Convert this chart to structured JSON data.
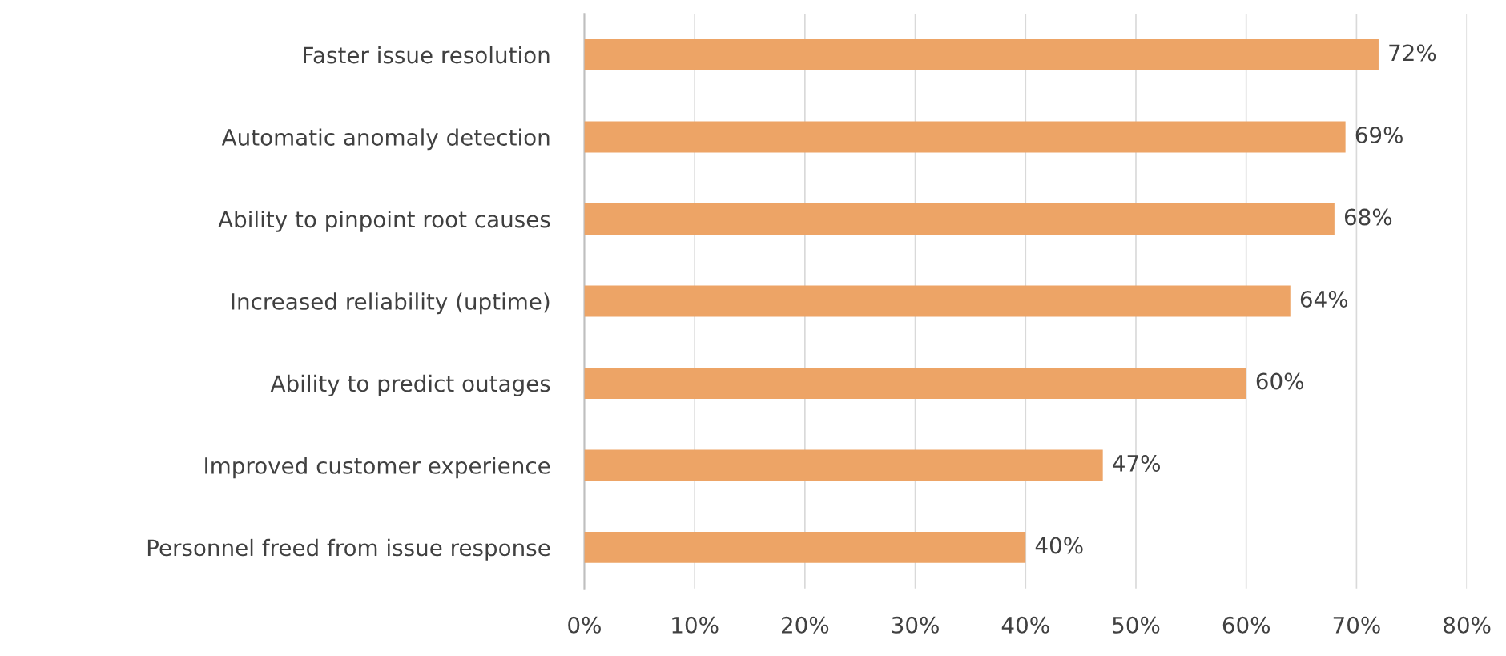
{
  "chart_data": {
    "type": "bar",
    "orientation": "horizontal",
    "categories": [
      "Faster issue resolution",
      "Automatic anomaly detection",
      "Ability to pinpoint root causes",
      "Increased reliability (uptime)",
      "Ability to predict outages",
      "Improved customer experience",
      "Personnel freed from issue response"
    ],
    "values": [
      72,
      69,
      68,
      64,
      60,
      47,
      40
    ],
    "value_labels": [
      "72%",
      "69%",
      "68%",
      "64%",
      "60%",
      "47%",
      "40%"
    ],
    "color": "#eda466",
    "xlim": [
      0,
      80
    ],
    "xticks": [
      {
        "value": 0,
        "label": "0%"
      },
      {
        "value": 10,
        "label": "10%"
      },
      {
        "value": 20,
        "label": "20%"
      },
      {
        "value": 30,
        "label": "30%"
      },
      {
        "value": 40,
        "label": "40%"
      },
      {
        "value": 50,
        "label": "50%"
      },
      {
        "value": 60,
        "label": "60%"
      },
      {
        "value": 70,
        "label": "70%"
      },
      {
        "value": 80,
        "label": "80%"
      }
    ],
    "grid": "x",
    "legend": false
  }
}
